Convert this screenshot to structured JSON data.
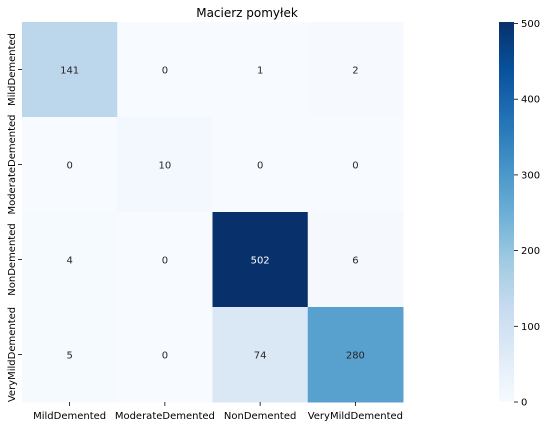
{
  "chart_data": {
    "type": "heatmap",
    "title": "Macierz pomyłek",
    "row_labels": [
      "MildDemented",
      "ModerateDemented",
      "NonDemented",
      "VeryMildDemented"
    ],
    "col_labels": [
      "MildDemented",
      "ModerateDemented",
      "NonDemented",
      "VeryMildDemented"
    ],
    "values": [
      [
        141,
        0,
        1,
        2
      ],
      [
        0,
        10,
        0,
        0
      ],
      [
        4,
        0,
        502,
        6
      ],
      [
        5,
        0,
        74,
        280
      ]
    ],
    "colormap": "Blues",
    "colorbar": {
      "range": [
        0,
        502
      ],
      "ticks": [
        0,
        100,
        200,
        300,
        400,
        500
      ],
      "colors": [
        "#f7fbff",
        "#deebf7",
        "#c6dbef",
        "#9ecae1",
        "#6baed6",
        "#4292c6",
        "#2171b5",
        "#08519c",
        "#08306b"
      ]
    }
  }
}
